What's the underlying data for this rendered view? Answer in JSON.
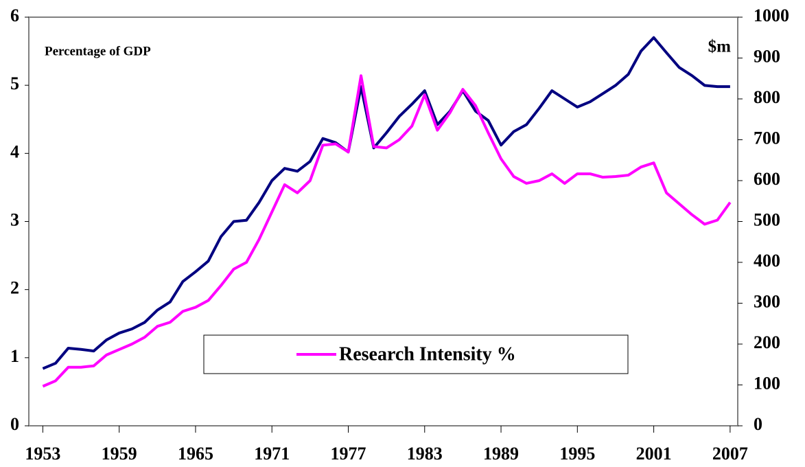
{
  "chart_data": {
    "type": "line",
    "y_label": "Percentage of GDP",
    "y2_label": "$m",
    "xlim": [
      1951.9,
      2007.6
    ],
    "xticks": [
      1953,
      1959,
      1965,
      1971,
      1977,
      1983,
      1989,
      1995,
      2001,
      2007
    ],
    "ylim": [
      0,
      6
    ],
    "yticks": [
      0,
      1,
      2,
      3,
      4,
      5,
      6
    ],
    "y2lim": [
      0,
      1000
    ],
    "y2ticks": [
      0,
      100,
      200,
      300,
      400,
      500,
      600,
      700,
      800,
      900,
      1000
    ],
    "legend": "lower center",
    "x": [
      1953,
      1954,
      1955,
      1956,
      1957,
      1958,
      1959,
      1960,
      1961,
      1962,
      1963,
      1964,
      1965,
      1966,
      1967,
      1968,
      1969,
      1970,
      1971,
      1972,
      1973,
      1974,
      1975,
      1976,
      1977,
      1978,
      1979,
      1980,
      1981,
      1982,
      1983,
      1984,
      1985,
      1986,
      1987,
      1988,
      1989,
      1990,
      1991,
      1992,
      1993,
      1994,
      1995,
      1996,
      1997,
      1998,
      1999,
      2000,
      2001,
      2002,
      2003,
      2004,
      2005,
      2006,
      2007
    ],
    "series": [
      {
        "name": "Research Intensity %",
        "color": "#ff00ff",
        "values": [
          0.58,
          0.66,
          0.86,
          0.86,
          0.88,
          1.04,
          1.12,
          1.2,
          1.3,
          1.46,
          1.52,
          1.68,
          1.74,
          1.84,
          2.06,
          2.3,
          2.4,
          2.74,
          3.14,
          3.54,
          3.42,
          3.6,
          4.12,
          4.14,
          4.02,
          5.14,
          4.1,
          4.08,
          4.2,
          4.4,
          4.86,
          4.34,
          4.6,
          4.94,
          4.7,
          4.3,
          3.92,
          3.66,
          3.56,
          3.6,
          3.7,
          3.56,
          3.7,
          3.7,
          3.65,
          3.66,
          3.68,
          3.8,
          3.86,
          3.42,
          3.26,
          3.1,
          2.96,
          3.02,
          3.28
        ]
      },
      {
        "color": "#000080",
        "axis": "y2",
        "values": [
          140,
          153,
          190,
          187,
          183,
          210,
          227,
          237,
          253,
          283,
          303,
          353,
          377,
          403,
          463,
          500,
          503,
          547,
          600,
          630,
          623,
          647,
          703,
          693,
          670,
          830,
          680,
          717,
          757,
          787,
          820,
          737,
          770,
          820,
          770,
          747,
          687,
          720,
          737,
          777,
          820,
          800,
          780,
          793,
          813,
          833,
          860,
          917,
          950,
          913,
          877,
          857,
          833,
          830,
          830
        ]
      }
    ]
  }
}
